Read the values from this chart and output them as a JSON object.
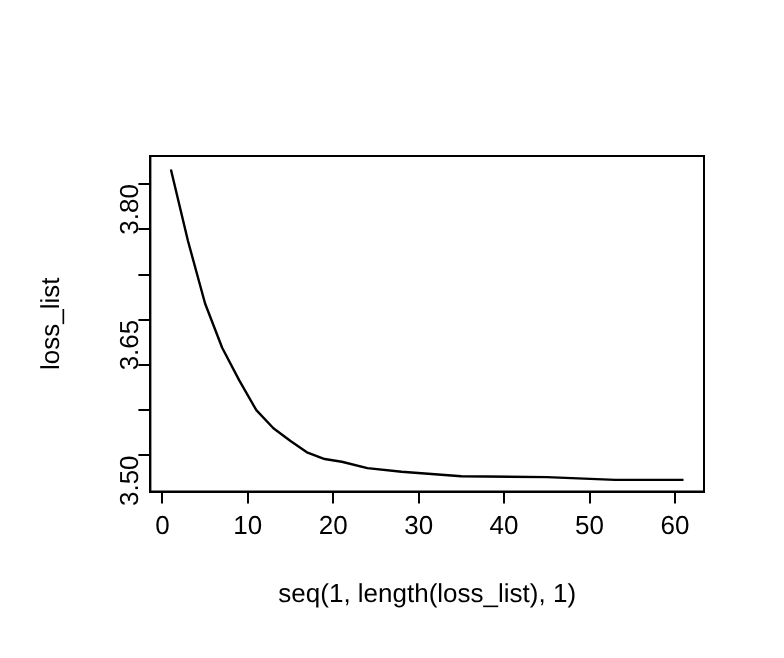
{
  "chart_data": {
    "type": "line",
    "xlabel": "seq(1, length(loss_list), 1)",
    "ylabel": "loss_list",
    "x": [
      1,
      3,
      5,
      7,
      9,
      11,
      13,
      15,
      17,
      19,
      21,
      24,
      28,
      35,
      45,
      53,
      61
    ],
    "series": [
      {
        "color": "#000000",
        "values": [
          3.816,
          3.737,
          3.668,
          3.619,
          3.583,
          3.55,
          3.53,
          3.516,
          3.503,
          3.496,
          3.493,
          3.486,
          3.482,
          3.477,
          3.476,
          3.473,
          3.473
        ]
      }
    ],
    "xlim": [
      -1.4,
      63.4
    ],
    "xticks": [
      0,
      10,
      20,
      30,
      40,
      50,
      60
    ],
    "ylim": [
      3.46,
      3.831
    ],
    "yticks": [
      {
        "value": 3.5,
        "label": "3.50"
      },
      {
        "value": 3.55,
        "label": null
      },
      {
        "value": 3.6,
        "label": null
      },
      3.65,
      {
        "value": 3.7,
        "label": null
      },
      {
        "value": 3.75,
        "label": null
      },
      {
        "value": 3.8,
        "label": "3.80"
      }
    ],
    "grid": false,
    "legend": false,
    "marker": "none",
    "line_style": "solid"
  }
}
